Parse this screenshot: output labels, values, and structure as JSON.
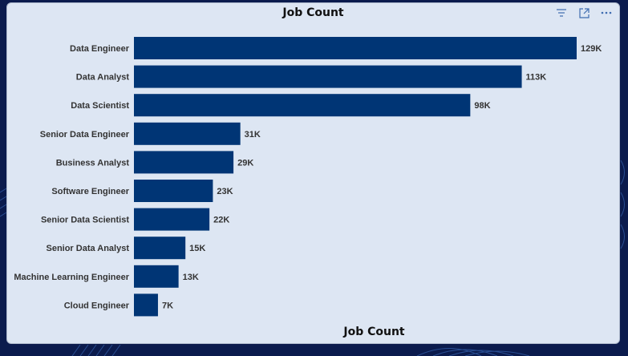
{
  "window": {
    "filter_icon": "filter-icon",
    "expand_icon": "focus-mode-icon",
    "more_icon": "more-options-icon"
  },
  "chart_data": {
    "type": "bar",
    "orientation": "horizontal",
    "title": "Job Count",
    "xlabel": "Job Count",
    "ylabel": "",
    "categories": [
      "Data Engineer",
      "Data Analyst",
      "Data Scientist",
      "Senior Data Engineer",
      "Business Analyst",
      "Software Engineer",
      "Senior Data Scientist",
      "Senior Data Analyst",
      "Machine Learning Engineer",
      "Cloud Engineer"
    ],
    "values": [
      129000,
      113000,
      98000,
      31000,
      29000,
      23000,
      22000,
      15000,
      13000,
      7000
    ],
    "value_labels": [
      "129K",
      "113K",
      "98K",
      "31K",
      "29K",
      "23K",
      "22K",
      "15K",
      "13K",
      "7K"
    ],
    "xlim": [
      0,
      129000
    ],
    "bar_color": "#003575",
    "grid": false,
    "legend": "none"
  }
}
